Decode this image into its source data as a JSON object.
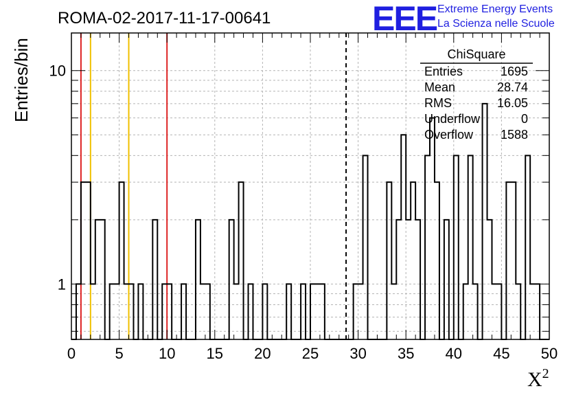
{
  "logo": {
    "letters": "EEE",
    "line1": "Extreme Energy Events",
    "line2": "La Scienza nelle Scuole",
    "color": "#1f1fe0"
  },
  "chart_data": {
    "type": "bar",
    "title": "ROMA-02-2017-11-17-00641",
    "xlabel": "X",
    "xlabel_sup": "2",
    "ylabel": "Entries/bin",
    "xlim": [
      0,
      50
    ],
    "ylim": [
      0.55,
      15
    ],
    "log_y": true,
    "grid": true,
    "bin_width": 0.5,
    "x_ticks": [
      0,
      5,
      10,
      15,
      20,
      25,
      30,
      35,
      40,
      45,
      50
    ],
    "x_tick_labels": [
      "0",
      "5",
      "10",
      "15",
      "20",
      "25",
      "30",
      "35",
      "40",
      "45",
      "50"
    ],
    "y_tick_labels": [
      {
        "value": 1,
        "label": "1"
      },
      {
        "value": 10,
        "label": "10"
      }
    ],
    "bins": [
      {
        "x": 0.5,
        "count": 1
      },
      {
        "x": 1.0,
        "count": 3
      },
      {
        "x": 1.5,
        "count": 3
      },
      {
        "x": 2.0,
        "count": 1
      },
      {
        "x": 2.5,
        "count": 2
      },
      {
        "x": 3.0,
        "count": 2
      },
      {
        "x": 4.0,
        "count": 1
      },
      {
        "x": 4.5,
        "count": 1
      },
      {
        "x": 5.0,
        "count": 3
      },
      {
        "x": 5.5,
        "count": 1
      },
      {
        "x": 6.0,
        "count": 1
      },
      {
        "x": 7.0,
        "count": 1
      },
      {
        "x": 8.5,
        "count": 2
      },
      {
        "x": 9.5,
        "count": 1
      },
      {
        "x": 10.0,
        "count": 1
      },
      {
        "x": 11.5,
        "count": 1
      },
      {
        "x": 13.0,
        "count": 2
      },
      {
        "x": 13.5,
        "count": 1
      },
      {
        "x": 14.0,
        "count": 1
      },
      {
        "x": 16.5,
        "count": 2
      },
      {
        "x": 17.0,
        "count": 1
      },
      {
        "x": 17.5,
        "count": 3
      },
      {
        "x": 18.5,
        "count": 1
      },
      {
        "x": 20.0,
        "count": 1
      },
      {
        "x": 22.5,
        "count": 1
      },
      {
        "x": 24.0,
        "count": 1
      },
      {
        "x": 25.0,
        "count": 1
      },
      {
        "x": 25.5,
        "count": 1
      },
      {
        "x": 26.0,
        "count": 1
      },
      {
        "x": 29.5,
        "count": 1
      },
      {
        "x": 30.0,
        "count": 1
      },
      {
        "x": 30.5,
        "count": 4
      },
      {
        "x": 33.0,
        "count": 3
      },
      {
        "x": 33.5,
        "count": 1
      },
      {
        "x": 34.0,
        "count": 2
      },
      {
        "x": 34.5,
        "count": 5
      },
      {
        "x": 35.0,
        "count": 2
      },
      {
        "x": 35.5,
        "count": 3
      },
      {
        "x": 36.0,
        "count": 2
      },
      {
        "x": 37.0,
        "count": 4
      },
      {
        "x": 37.5,
        "count": 6
      },
      {
        "x": 38.0,
        "count": 3
      },
      {
        "x": 39.0,
        "count": 2
      },
      {
        "x": 40.0,
        "count": 4
      },
      {
        "x": 41.0,
        "count": 1
      },
      {
        "x": 41.5,
        "count": 4
      },
      {
        "x": 42.0,
        "count": 1
      },
      {
        "x": 43.0,
        "count": 7
      },
      {
        "x": 43.5,
        "count": 2
      },
      {
        "x": 44.0,
        "count": 1
      },
      {
        "x": 44.5,
        "count": 1
      },
      {
        "x": 45.5,
        "count": 3
      },
      {
        "x": 46.0,
        "count": 3
      },
      {
        "x": 46.5,
        "count": 1
      },
      {
        "x": 47.5,
        "count": 4
      },
      {
        "x": 48.0,
        "count": 1
      },
      {
        "x": 48.5,
        "count": 1
      }
    ],
    "markers": [
      {
        "x": 1.0,
        "color": "#dd2222",
        "style": "solid"
      },
      {
        "x": 2.0,
        "color": "#f0c000",
        "style": "solid"
      },
      {
        "x": 6.0,
        "color": "#f0c000",
        "style": "solid"
      },
      {
        "x": 10.0,
        "color": "#dd2222",
        "style": "solid"
      },
      {
        "x": 28.74,
        "color": "#000000",
        "style": "dashed"
      }
    ],
    "stats_box": {
      "title": "ChiSquare",
      "rows": [
        {
          "label": "Entries",
          "value": "1695"
        },
        {
          "label": "Mean",
          "value": "28.74"
        },
        {
          "label": "RMS",
          "value": "16.05"
        },
        {
          "label": "Underflow",
          "value": "0"
        },
        {
          "label": "Overflow",
          "value": "1588"
        }
      ]
    }
  }
}
